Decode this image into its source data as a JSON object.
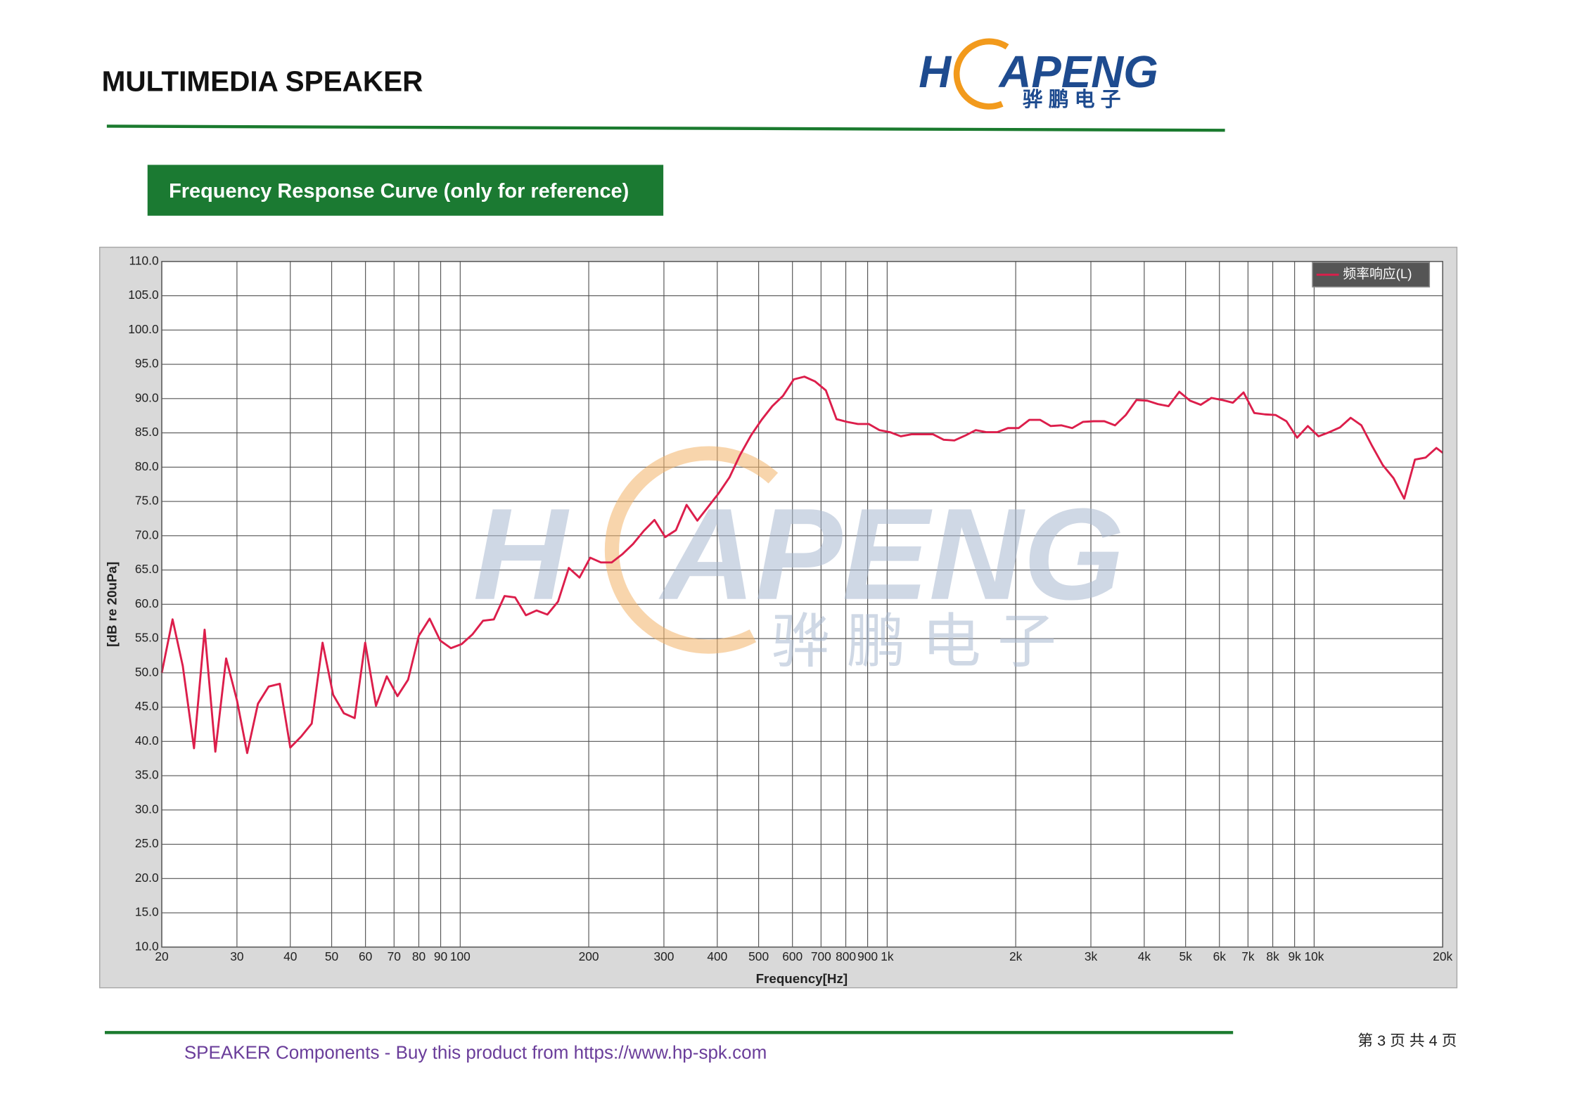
{
  "header": {
    "title": "MULTIMEDIA SPEAKER"
  },
  "logo": {
    "name_left": "H",
    "name_right": "APENG",
    "chinese": "骅 鹏 电 子"
  },
  "section": {
    "title": "Frequency Response Curve (only for reference)"
  },
  "chart_data": {
    "type": "line",
    "xscale": "log",
    "grid": true,
    "legend": "upper right",
    "xlabel": "Frequency[Hz]",
    "ylabel": "[dB re 20uPa]",
    "xlim": [
      20,
      20000
    ],
    "ylim": [
      10,
      110
    ],
    "xticks": [
      20,
      30,
      40,
      50,
      60,
      70,
      80,
      90,
      100,
      200,
      300,
      400,
      500,
      600,
      700,
      800,
      900,
      {
        "value": 1000,
        "label": "1k"
      },
      {
        "value": 2000,
        "label": "2k"
      },
      {
        "value": 3000,
        "label": "3k"
      },
      {
        "value": 4000,
        "label": "4k"
      },
      {
        "value": 5000,
        "label": "5k"
      },
      {
        "value": 6000,
        "label": "6k"
      },
      {
        "value": 7000,
        "label": "7k"
      },
      {
        "value": 8000,
        "label": "8k"
      },
      {
        "value": 9000,
        "label": "9k"
      },
      {
        "value": 10000,
        "label": "10k"
      },
      {
        "value": 20000,
        "label": "20k"
      }
    ],
    "yticks": [
      {
        "value": 10,
        "label": "10.0"
      },
      {
        "value": 15,
        "label": "15.0"
      },
      {
        "value": 20,
        "label": "20.0"
      },
      {
        "value": 25,
        "label": "25.0"
      },
      {
        "value": 30,
        "label": "30.0"
      },
      {
        "value": 35,
        "label": "35.0"
      },
      {
        "value": 40,
        "label": "40.0"
      },
      {
        "value": 45,
        "label": "45.0"
      },
      {
        "value": 50,
        "label": "50.0"
      },
      {
        "value": 55,
        "label": "55.0"
      },
      {
        "value": 60,
        "label": "60.0"
      },
      {
        "value": 65,
        "label": "65.0"
      },
      {
        "value": 70,
        "label": "70.0"
      },
      {
        "value": 75,
        "label": "75.0"
      },
      {
        "value": 80,
        "label": "80.0"
      },
      {
        "value": 85,
        "label": "85.0"
      },
      {
        "value": 90,
        "label": "90.0"
      },
      {
        "value": 95,
        "label": "95.0"
      },
      {
        "value": 100,
        "label": "100.0"
      },
      {
        "value": 105,
        "label": "105.0"
      },
      {
        "value": 110,
        "label": "110.0"
      }
    ],
    "x": [
      20,
      21.2,
      22.4,
      23.8,
      25.2,
      26.7,
      28.3,
      30.0,
      31.7,
      33.6,
      35.6,
      37.8,
      40,
      42.4,
      44.9,
      47.6,
      50.4,
      53.4,
      56.6,
      59.9,
      63.5,
      67.3,
      71.3,
      75.5,
      80,
      84.8,
      89.8,
      95.1,
      100.8,
      106.8,
      113.1,
      119.9,
      127.0,
      134.5,
      142.5,
      151.0,
      160,
      169.5,
      179.6,
      190.3,
      201.6,
      213.6,
      226.3,
      239.7,
      254.0,
      269.1,
      285.1,
      302.1,
      320,
      339.0,
      359.2,
      380.6,
      403.2,
      427.1,
      452.5,
      479.5,
      508.0,
      538.2,
      570.2,
      604.1,
      640,
      678.1,
      718.4,
      761.1,
      806.3,
      854.3,
      905.1,
      958.9,
      1015.9,
      1076.3,
      1140.4,
      1208.2,
      1280,
      1356.1,
      1436.8,
      1522.2,
      1612.7,
      1708.6,
      1810.2,
      1917.8,
      2031.9,
      2152.7,
      2280.7,
      2416.3,
      2560,
      2712.2,
      2873.5,
      3044.4,
      3225.4,
      3417.2,
      3620.4,
      3835.7,
      4063.7,
      4305.4,
      4561.4,
      4832.6,
      5120,
      5424.5,
      5747.0,
      6088.7,
      6450.8,
      6834.4,
      7240.8,
      7671.3,
      8127.5,
      8610.7,
      9122.7,
      9665.2,
      10240,
      10848.9,
      11494.0,
      12177.5,
      12901.6,
      13668.7,
      14481.5,
      15342.6,
      16255.0,
      17221.5,
      18245.5,
      19330.4,
      20000
    ],
    "series": [
      {
        "name": "频率响应(L)",
        "color": "#dc1e4b",
        "values": [
          50.0,
          57.8,
          51,
          39,
          56.3,
          38.5,
          52.1,
          46,
          38.3,
          45.5,
          48,
          48.4,
          39.1,
          40.7,
          42.6,
          54.4,
          46.8,
          44.1,
          43.4,
          54.4,
          45.2,
          49.5,
          46.6,
          49.0,
          55.4,
          57.9,
          54.7,
          53.6,
          54.2,
          55.6,
          57.6,
          57.8,
          61.2,
          61.0,
          58.4,
          59.1,
          58.5,
          60.4,
          65.3,
          63.9,
          66.8,
          66.1,
          66.1,
          67.3,
          68.8,
          70.7,
          72.3,
          69.8,
          70.8,
          74.5,
          72.2,
          74.2,
          76.2,
          78.5,
          81.8,
          84.6,
          86.9,
          88.9,
          90.4,
          92.8,
          93.2,
          92.5,
          91.2,
          87.0,
          86.6,
          86.3,
          86.3,
          85.4,
          85.1,
          84.5,
          84.8,
          84.8,
          84.8,
          84.0,
          83.9,
          84.6,
          85.4,
          85.1,
          85.1,
          85.7,
          85.7,
          86.9,
          86.9,
          86.0,
          86.1,
          85.7,
          86.6,
          86.7,
          86.7,
          86.1,
          87.6,
          89.8,
          89.7,
          89.2,
          88.9,
          91.0,
          89.7,
          89.1,
          90.1,
          89.8,
          89.4,
          90.9,
          87.9,
          87.7,
          87.6,
          86.7,
          84.3,
          86.0,
          84.5,
          85.1,
          85.8,
          87.2,
          86.1,
          83.1,
          80.3,
          78.4,
          75.4,
          81.1,
          81.4,
          82.8,
          82.1
        ]
      }
    ]
  },
  "footer": {
    "text": "SPEAKER Components - Buy this product from  https://www.hp-spk.com",
    "page": "第 3 页 共 4 页"
  }
}
